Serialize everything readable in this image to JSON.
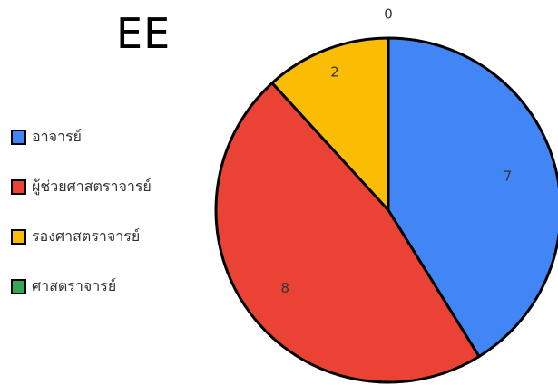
{
  "chart_data": {
    "type": "pie",
    "title": "EE",
    "categories": [
      "อาจารย์",
      "ผู้ช่วยศาสตราจารย์",
      "รองศาสตราจารย์",
      "ศาสตราจารย์"
    ],
    "values": [
      7,
      8,
      2,
      0
    ],
    "colors": [
      "#4285f4",
      "#ea4335",
      "#fbbc04",
      "#34a853"
    ],
    "legend_position": "left",
    "data_labels": [
      "7",
      "8",
      "2",
      "0"
    ]
  }
}
